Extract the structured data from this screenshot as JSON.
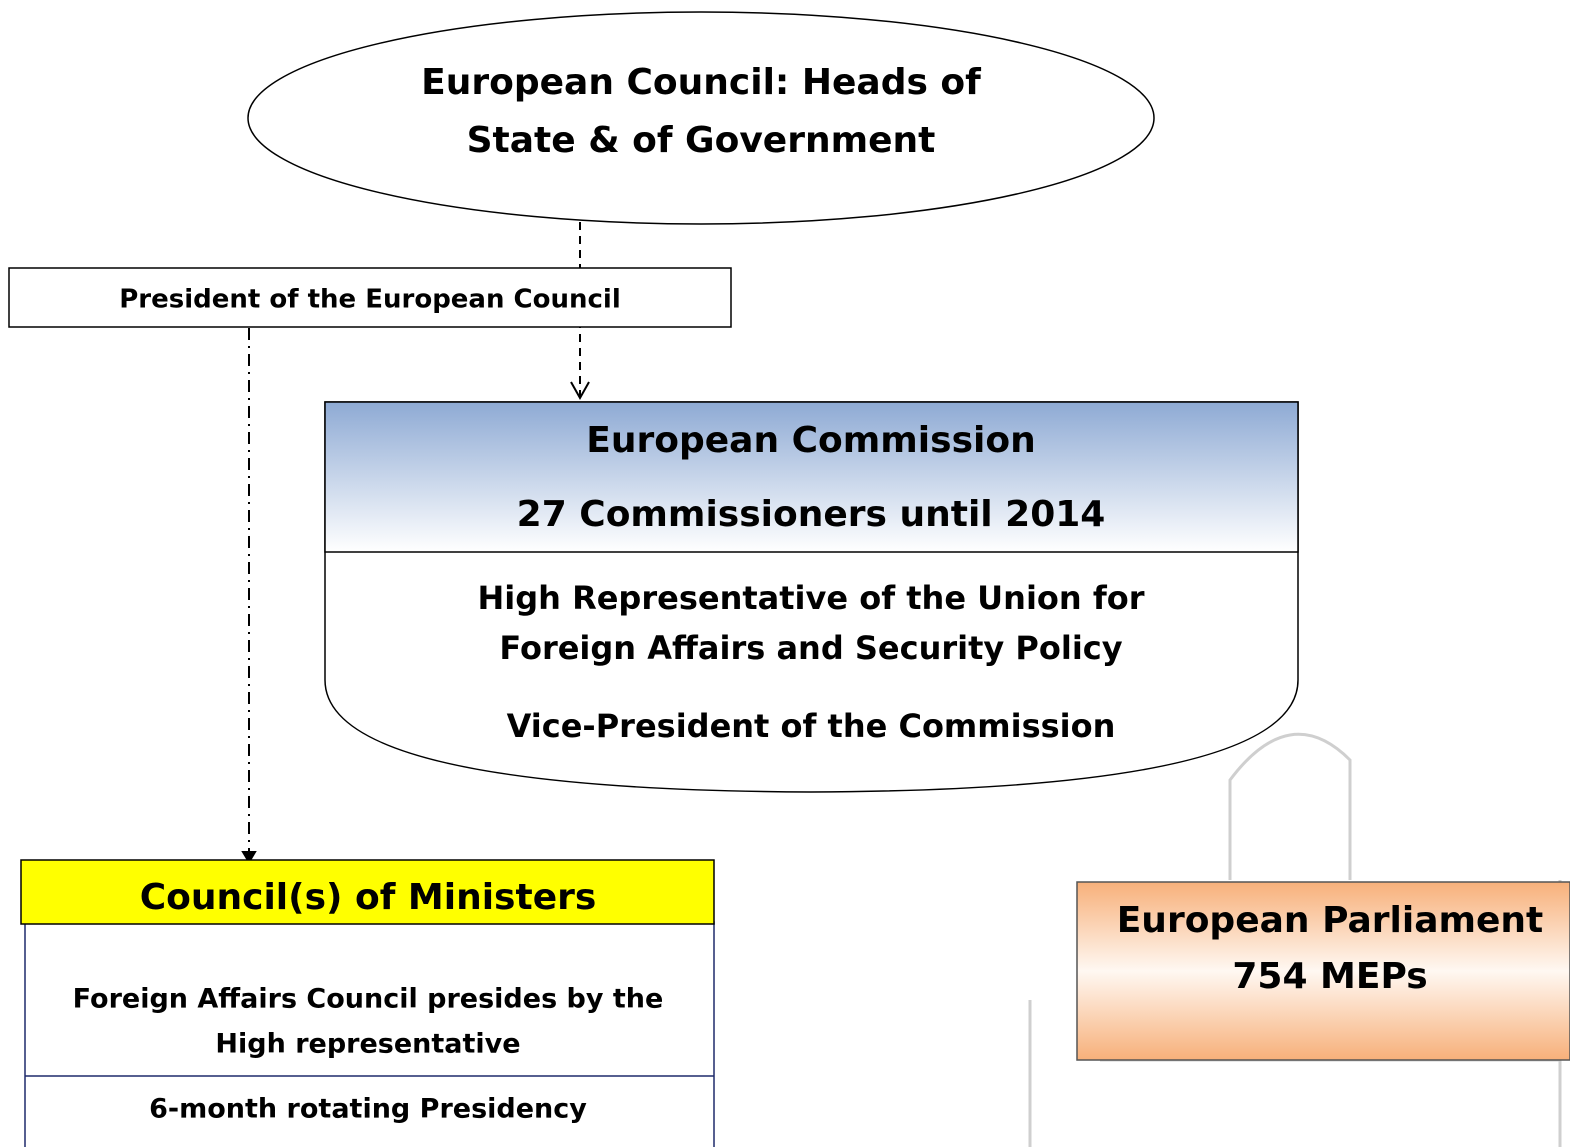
{
  "nodes": [
    {
      "label": [
        "European Council: Heads of",
        "State & of Government"
      ]
    },
    {
      "label": [
        "President of the European Council"
      ]
    },
    {
      "label": [
        "European Commission",
        "27 Commissioners until 2014"
      ],
      "details": [
        "High Representative of the Union for",
        "Foreign Affairs and Security Policy",
        "Vice-President of the Commission"
      ]
    },
    {
      "label": [
        "Council(s) of Ministers"
      ],
      "details": [
        "Foreign Affairs Council presides by the",
        "High representative",
        "6-month rotating Presidency"
      ]
    },
    {
      "label": [
        "European Parliament",
        "754 MEPs"
      ]
    }
  ]
}
